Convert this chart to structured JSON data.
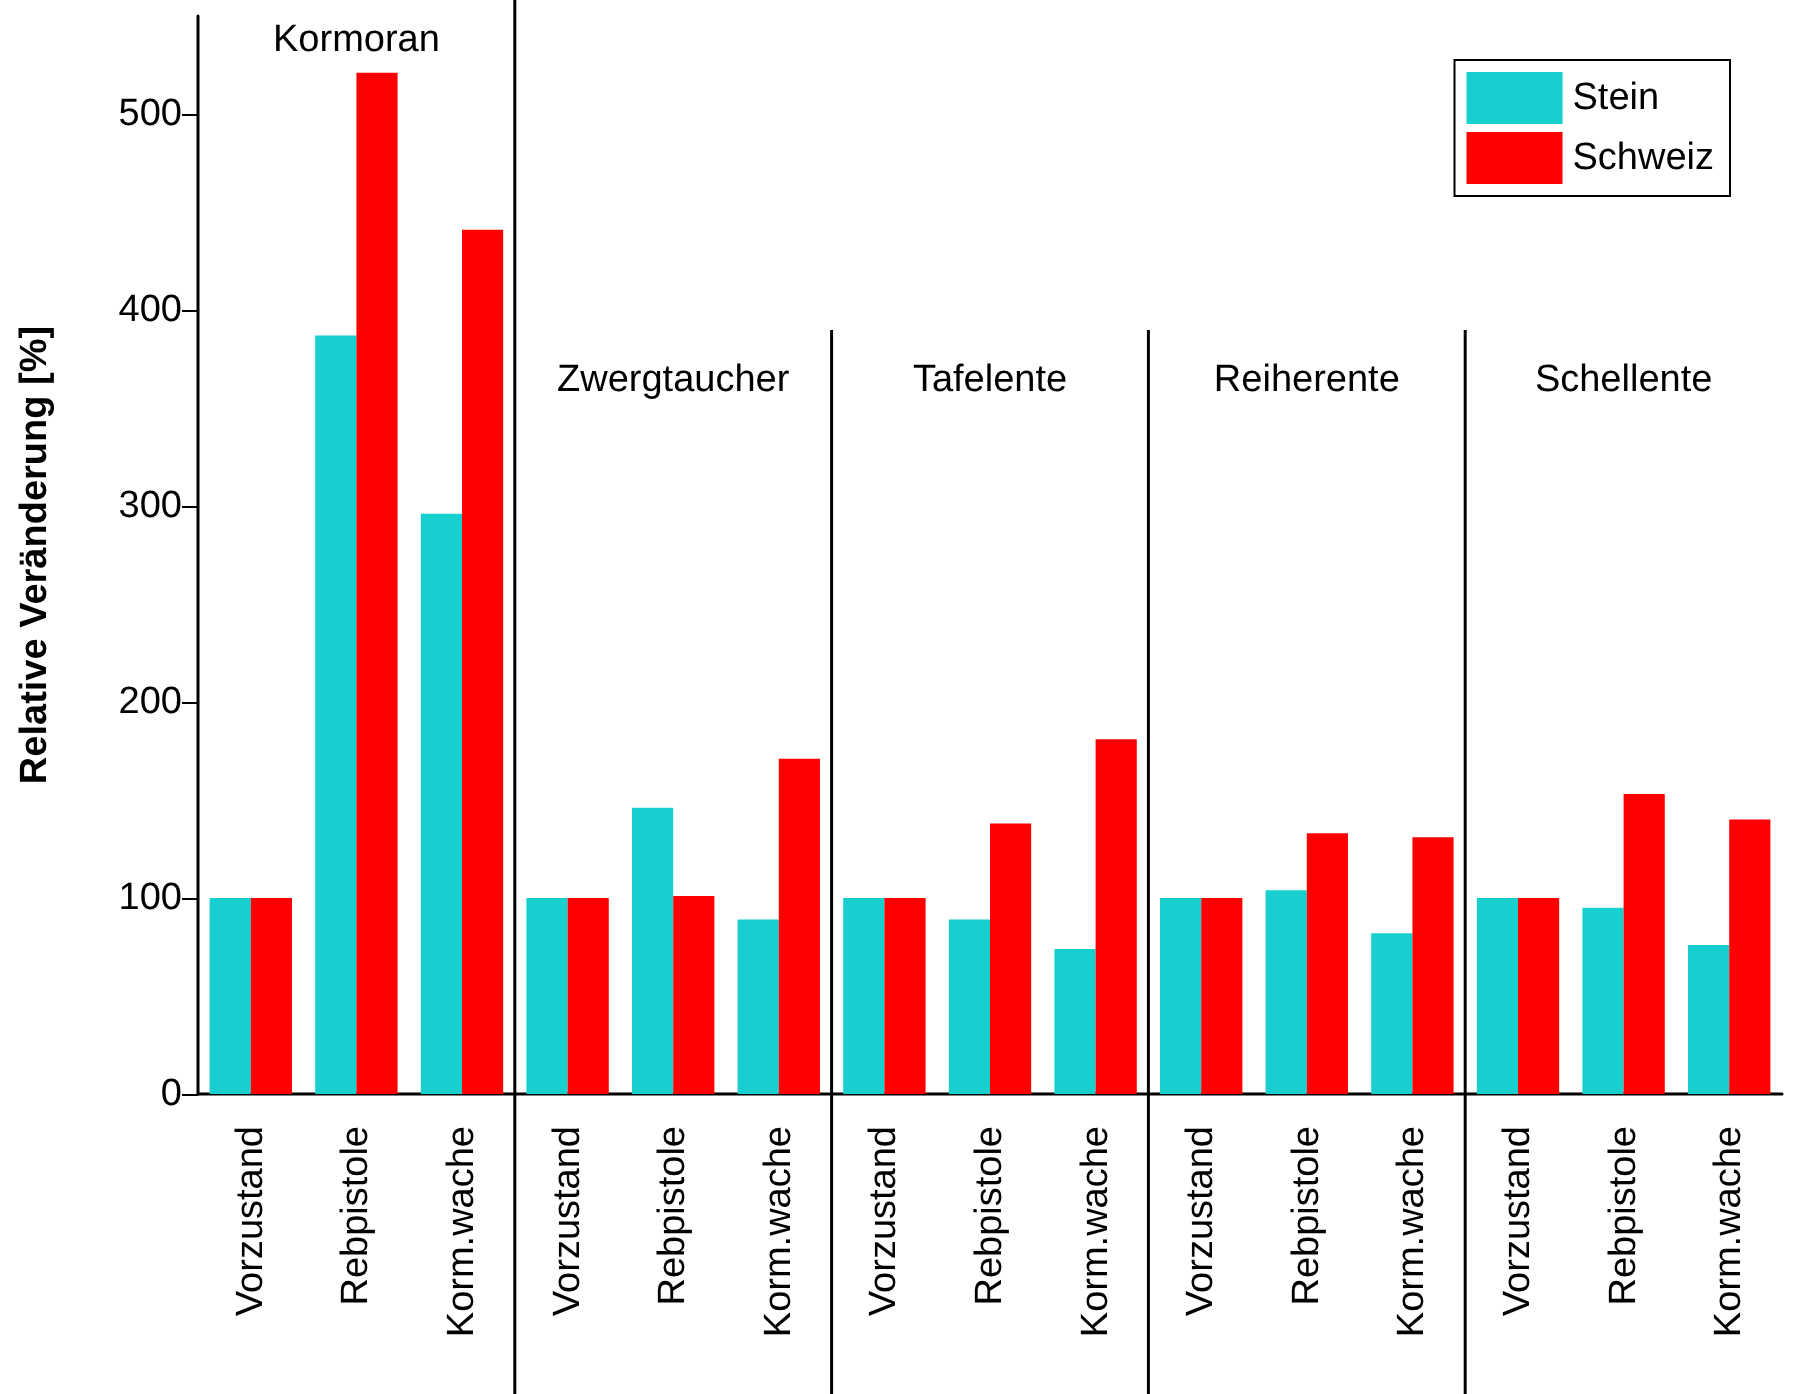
{
  "chart_data": {
    "type": "bar",
    "ylabel": "Relative Veränderung [%]",
    "categories": [
      "Vorzustand",
      "Rebpistole",
      "Korm.wache",
      "Vorzustand",
      "Rebpistole",
      "Korm.wache",
      "Vorzustand",
      "Rebpistole",
      "Korm.wache",
      "Vorzustand",
      "Rebpistole",
      "Korm.wache",
      "Vorzustand",
      "Rebpistole",
      "Korm.wache"
    ],
    "series": [
      {
        "name": "Stein",
        "color": "#17cfcf",
        "values": [
          100,
          387,
          296,
          100,
          146,
          89,
          100,
          89,
          74,
          100,
          104,
          82,
          100,
          95,
          76
        ]
      },
      {
        "name": "Schweiz",
        "color": "#ff0000",
        "values": [
          100,
          521,
          441,
          100,
          101,
          171,
          100,
          138,
          181,
          100,
          133,
          131,
          100,
          153,
          140
        ]
      }
    ],
    "ylim": [
      0,
      550
    ],
    "yticks": [
      0,
      100,
      200,
      300,
      400,
      500
    ],
    "grid": false,
    "legend": "top right",
    "annotations": [
      "Kormoran",
      "Zwergtaucher",
      "Tafelente",
      "Reiherente",
      "Schellente"
    ]
  }
}
